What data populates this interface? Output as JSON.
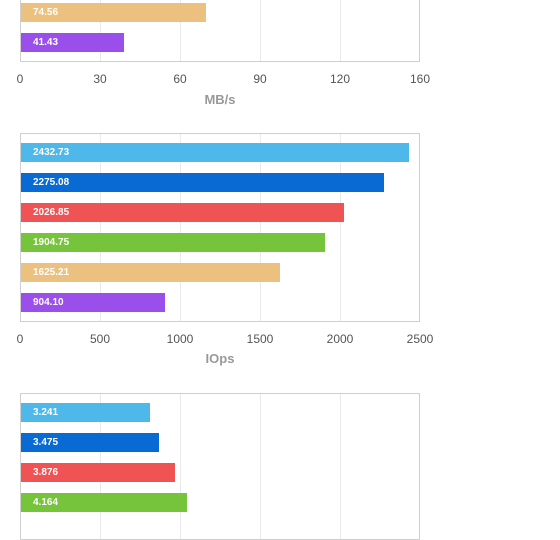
{
  "colors": {
    "light_blue": "#4fb8ea",
    "blue": "#0a6ad4",
    "red": "#ef5353",
    "green": "#76c43b",
    "tan": "#ecc07f",
    "purple": "#9b4fea"
  },
  "chart_data": [
    {
      "type": "bar",
      "orientation": "horizontal",
      "xlabel": "MB/s",
      "xlim": [
        0,
        160
      ],
      "ticks": [
        "0",
        "30",
        "60",
        "90",
        "120",
        "160"
      ],
      "grid": true,
      "bars": [
        {
          "value": 74.56,
          "label": "74.56",
          "color": "#ecc07f"
        },
        {
          "value": 41.43,
          "label": "41.43",
          "color": "#9b4fea"
        }
      ]
    },
    {
      "type": "bar",
      "orientation": "horizontal",
      "xlabel": "IOps",
      "xlim": [
        0,
        2500
      ],
      "ticks": [
        "0",
        "500",
        "1000",
        "1500",
        "2000",
        "2500"
      ],
      "grid": true,
      "bars": [
        {
          "value": 2432.73,
          "label": "2432.73",
          "color": "#4fb8ea"
        },
        {
          "value": 2275.08,
          "label": "2275.08",
          "color": "#0a6ad4"
        },
        {
          "value": 2026.85,
          "label": "2026.85",
          "color": "#ef5353"
        },
        {
          "value": 1904.75,
          "label": "1904.75",
          "color": "#76c43b"
        },
        {
          "value": 1625.21,
          "label": "1625.21",
          "color": "#ecc07f"
        },
        {
          "value": 904.1,
          "label": "904.10",
          "color": "#9b4fea"
        }
      ]
    },
    {
      "type": "bar",
      "orientation": "horizontal",
      "xlim": [
        0,
        10
      ],
      "grid": true,
      "bars": [
        {
          "value": 3.241,
          "label": "3.241",
          "color": "#4fb8ea"
        },
        {
          "value": 3.475,
          "label": "3.475",
          "color": "#0a6ad4"
        },
        {
          "value": 3.876,
          "label": "3.876",
          "color": "#ef5353"
        },
        {
          "value": 4.164,
          "label": "4.164",
          "color": "#76c43b"
        }
      ]
    }
  ]
}
